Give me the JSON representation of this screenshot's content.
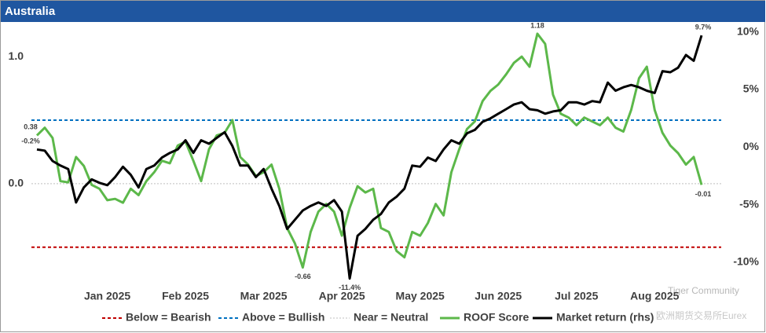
{
  "chart_data": {
    "type": "line",
    "title": "Australia",
    "categories": [
      null,
      null,
      null,
      null,
      null,
      null,
      null,
      null,
      null,
      "Jan 2025",
      null,
      null,
      null,
      null,
      null,
      null,
      null,
      null,
      null,
      "Feb 2025",
      null,
      null,
      null,
      null,
      null,
      null,
      null,
      null,
      null,
      "Mar 2025",
      null,
      null,
      null,
      null,
      null,
      null,
      null,
      null,
      null,
      "Apr 2025",
      null,
      null,
      null,
      null,
      null,
      null,
      null,
      null,
      null,
      "May 2025",
      null,
      null,
      null,
      null,
      null,
      null,
      null,
      null,
      null,
      "Jun 2025",
      null,
      null,
      null,
      null,
      null,
      null,
      null,
      null,
      null,
      "Jul 2025",
      null,
      null,
      null,
      null,
      null,
      null,
      null,
      null,
      null,
      "Aug 2025",
      null,
      null,
      null,
      null,
      null,
      null
    ],
    "series": [
      {
        "name": "ROOF Score",
        "color": "#5cb84a",
        "axis": "y",
        "values": [
          0.38,
          0.44,
          0.36,
          0.02,
          0.01,
          0.21,
          0.14,
          -0.01,
          -0.04,
          -0.13,
          -0.12,
          -0.15,
          -0.04,
          -0.09,
          0.02,
          0.09,
          0.18,
          0.16,
          0.3,
          0.33,
          0.18,
          0.02,
          0.27,
          0.38,
          0.4,
          0.5,
          0.21,
          0.15,
          0.06,
          0.09,
          0.15,
          -0.04,
          -0.35,
          -0.47,
          -0.66,
          -0.38,
          -0.22,
          -0.16,
          -0.22,
          -0.41,
          -0.19,
          -0.02,
          -0.07,
          -0.04,
          -0.35,
          -0.38,
          -0.53,
          -0.58,
          -0.38,
          -0.41,
          -0.31,
          -0.16,
          -0.25,
          0.09,
          0.27,
          0.43,
          0.49,
          0.65,
          0.73,
          0.78,
          0.86,
          0.95,
          1.0,
          0.92,
          1.18,
          1.1,
          0.7,
          0.55,
          0.52,
          0.46,
          0.52,
          0.49,
          0.46,
          0.52,
          0.44,
          0.41,
          0.58,
          0.83,
          0.92,
          0.58,
          0.4,
          0.3,
          0.24,
          0.15,
          0.21,
          -0.01
        ],
        "value_labels": [
          "0.38",
          null,
          null,
          null,
          null,
          null,
          null,
          null,
          null,
          null,
          null,
          null,
          null,
          null,
          null,
          null,
          null,
          null,
          null,
          null,
          null,
          null,
          null,
          null,
          null,
          null,
          null,
          null,
          null,
          null,
          null,
          null,
          null,
          null,
          "-0.66",
          null,
          null,
          null,
          null,
          null,
          null,
          null,
          null,
          null,
          null,
          null,
          null,
          null,
          null,
          null,
          null,
          null,
          null,
          null,
          null,
          null,
          null,
          null,
          null,
          null,
          null,
          null,
          null,
          null,
          "1.18",
          null,
          null,
          null,
          null,
          null,
          null,
          null,
          null,
          null,
          null,
          null,
          null,
          null,
          null,
          null,
          null,
          null,
          null,
          null,
          null,
          "-0.01"
        ]
      },
      {
        "name": "Market return (rhs)",
        "color": "#000000",
        "axis": "y2",
        "values": [
          -0.2,
          -0.3,
          -1.2,
          -1.6,
          -1.9,
          -4.8,
          -3.5,
          -2.8,
          -3.1,
          -3.3,
          -2.6,
          -1.7,
          -2.4,
          -3.5,
          -1.9,
          -1.6,
          -0.9,
          -0.5,
          -0.2,
          0.6,
          -0.5,
          0.6,
          0.3,
          0.8,
          1.3,
          0.1,
          -1.6,
          -1.6,
          -2.6,
          -1.9,
          -3.6,
          -5.1,
          -7.1,
          -6.3,
          -5.5,
          -5.1,
          -4.8,
          -5.1,
          -4.6,
          -5.6,
          -11.4,
          -7.7,
          -7.1,
          -6.3,
          -5.8,
          -4.8,
          -4.3,
          -3.6,
          -1.6,
          -1.7,
          -0.9,
          -1.2,
          -0.2,
          0.6,
          0.3,
          1.2,
          1.5,
          2.2,
          2.5,
          2.9,
          3.3,
          3.7,
          3.9,
          3.3,
          3.2,
          2.9,
          3.1,
          3.2,
          3.9,
          3.9,
          3.7,
          4.0,
          3.9,
          5.6,
          4.9,
          5.2,
          5.4,
          5.2,
          4.9,
          4.7,
          6.6,
          6.5,
          6.9,
          8.0,
          7.5,
          9.7
        ],
        "value_labels": [
          "-0.2%",
          null,
          null,
          null,
          null,
          null,
          null,
          null,
          null,
          null,
          null,
          null,
          null,
          null,
          null,
          null,
          null,
          null,
          null,
          null,
          null,
          null,
          null,
          null,
          null,
          null,
          null,
          null,
          null,
          null,
          null,
          null,
          null,
          null,
          null,
          null,
          null,
          null,
          null,
          null,
          "-11.4%",
          null,
          null,
          null,
          null,
          null,
          null,
          null,
          null,
          null,
          null,
          null,
          null,
          null,
          null,
          null,
          null,
          null,
          null,
          null,
          null,
          null,
          null,
          null,
          null,
          null,
          null,
          null,
          null,
          null,
          null,
          null,
          null,
          null,
          null,
          null,
          null,
          null,
          null,
          null,
          null,
          null,
          null,
          null,
          null,
          "9.7%"
        ]
      }
    ],
    "reference_lines": [
      {
        "name": "Below = Bearish",
        "value": -0.5,
        "color": "#c00000"
      },
      {
        "name": "Above = Bullish",
        "value": 0.5,
        "color": "#0070c0"
      },
      {
        "name": "Near = Neutral",
        "value": 0,
        "color": "#bfbfbf"
      }
    ],
    "ylim": [
      -0.78,
      1.26
    ],
    "yticks": [
      {
        "value": 0,
        "label": "0.0"
      },
      {
        "value": 1,
        "label": "1.0"
      }
    ],
    "y2lim": [
      -11.77,
      10.73
    ],
    "y2ticks": [
      {
        "value": -10,
        "label": "-10%"
      },
      {
        "value": -5,
        "label": "-5%"
      },
      {
        "value": 0,
        "label": "0%"
      },
      {
        "value": 5,
        "label": "5%"
      },
      {
        "value": 10,
        "label": "10%"
      }
    ],
    "legend": "bottom",
    "watermark": [
      "Tiger Community",
      "欧洲期货交易所Eurex"
    ]
  }
}
